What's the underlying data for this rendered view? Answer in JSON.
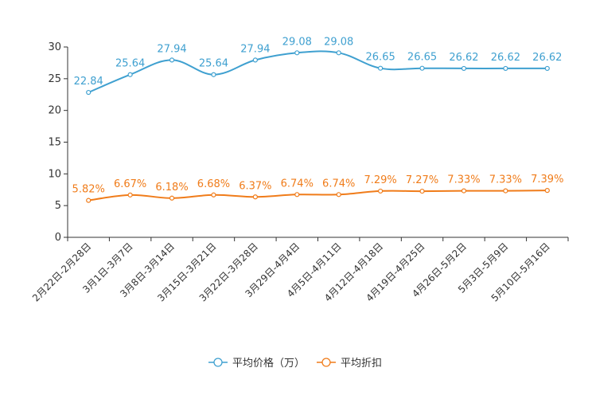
{
  "chart_data": {
    "type": "line",
    "title": "",
    "xlabel": "",
    "ylabel": "",
    "ylim": [
      0,
      30
    ],
    "yticks": [
      0,
      5,
      10,
      15,
      20,
      25,
      30
    ],
    "grid": false,
    "legend_position": "bottom-center",
    "categories": [
      "2月22日-2月28日",
      "3月1日-3月7日",
      "3月8日-3月14日",
      "3月15日-3月21日",
      "3月22日-3月28日",
      "3月29日-4月4日",
      "4月5日-4月11日",
      "4月12日-4月18日",
      "4月19日-4月25日",
      "4月26日-5月2日",
      "5月3日-5月9日",
      "5月10日-5月16日"
    ],
    "series": [
      {
        "name": "平均价格（万）",
        "color": "#3fa0d0",
        "values": [
          22.84,
          25.64,
          27.94,
          25.64,
          27.94,
          29.08,
          29.08,
          26.65,
          26.65,
          26.62,
          26.62,
          26.62
        ],
        "labels": [
          "22.84",
          "25.64",
          "27.94",
          "25.64",
          "27.94",
          "29.08",
          "29.08",
          "26.65",
          "26.65",
          "26.62",
          "26.62",
          "26.62"
        ]
      },
      {
        "name": "平均折扣",
        "color": "#f07c1a",
        "values": [
          5.82,
          6.67,
          6.18,
          6.68,
          6.37,
          6.74,
          6.74,
          7.29,
          7.27,
          7.33,
          7.33,
          7.39
        ],
        "labels": [
          "5.82%",
          "6.67%",
          "6.18%",
          "6.68%",
          "6.37%",
          "6.74%",
          "6.74%",
          "7.29%",
          "7.27%",
          "7.33%",
          "7.33%",
          "7.39%"
        ]
      }
    ]
  }
}
